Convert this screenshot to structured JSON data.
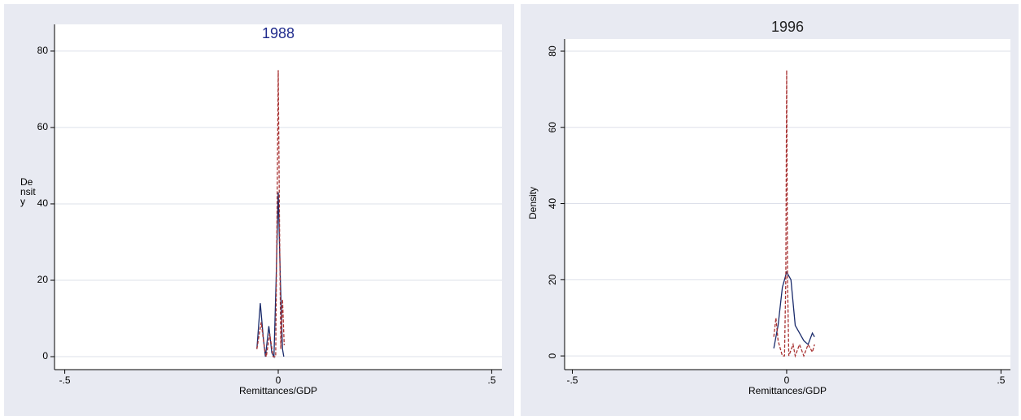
{
  "chart_data": [
    {
      "type": "line",
      "title": "1988",
      "title_color": "#1f2a8c",
      "xlabel": "Remittances/GDP",
      "ylabel": "Density",
      "xlim": [
        -0.524,
        0.524
      ],
      "ylim": [
        -3.4,
        87
      ],
      "xticks": [
        {
          "value": -0.5,
          "label": "-.5"
        },
        0,
        {
          "value": 0.5,
          "label": ".5"
        }
      ],
      "yticks": [
        0,
        20,
        40,
        60,
        80
      ],
      "grid": true,
      "series": [
        {
          "color": "#1a2b6b",
          "dash": false,
          "x": [
            -0.05,
            -0.042,
            -0.035,
            -0.03,
            -0.022,
            -0.015,
            -0.01,
            -0.005,
            0,
            0.005,
            0.01,
            0.013
          ],
          "values": [
            2,
            14,
            5,
            0,
            8,
            1,
            0,
            20,
            43,
            20,
            2,
            0
          ]
        },
        {
          "color": "#a83232",
          "dash": true,
          "x": [
            -0.05,
            -0.04,
            -0.032,
            -0.028,
            -0.02,
            -0.012,
            -0.006,
            -0.003,
            0,
            0.003,
            0.006,
            0.01,
            0.014
          ],
          "values": [
            2,
            9,
            2,
            0,
            6,
            0,
            0,
            35,
            75,
            35,
            2,
            15,
            3
          ]
        }
      ]
    },
    {
      "type": "line",
      "title": "1996",
      "title_color": "#222222",
      "xlabel": "Remittances/GDP",
      "ylabel": "Density",
      "xlim": [
        -0.518,
        0.522
      ],
      "ylim": [
        -3.6,
        83.2
      ],
      "xticks": [
        {
          "value": -0.5,
          "label": "-.5"
        },
        0,
        {
          "value": 0.5,
          "label": ".5"
        }
      ],
      "yticks": [
        0,
        20,
        40,
        60,
        80
      ],
      "grid": true,
      "series": [
        {
          "color": "#1a2b6b",
          "dash": false,
          "x": [
            -0.03,
            -0.02,
            -0.01,
            0,
            0.01,
            0.02,
            0.03,
            0.04,
            0.05,
            0.06,
            0.065
          ],
          "values": [
            2,
            8,
            18,
            22,
            20,
            8,
            6,
            4,
            3,
            6,
            5
          ]
        },
        {
          "color": "#a83232",
          "dash": true,
          "x": [
            -0.03,
            -0.025,
            -0.02,
            -0.01,
            -0.005,
            -0.002,
            0,
            0.002,
            0.005,
            0.015,
            0.02,
            0.03,
            0.04,
            0.05,
            0.06,
            0.065
          ],
          "values": [
            5,
            10,
            4,
            0,
            0,
            20,
            75,
            20,
            0,
            3,
            0,
            3,
            0,
            3,
            1,
            3
          ]
        }
      ]
    }
  ]
}
